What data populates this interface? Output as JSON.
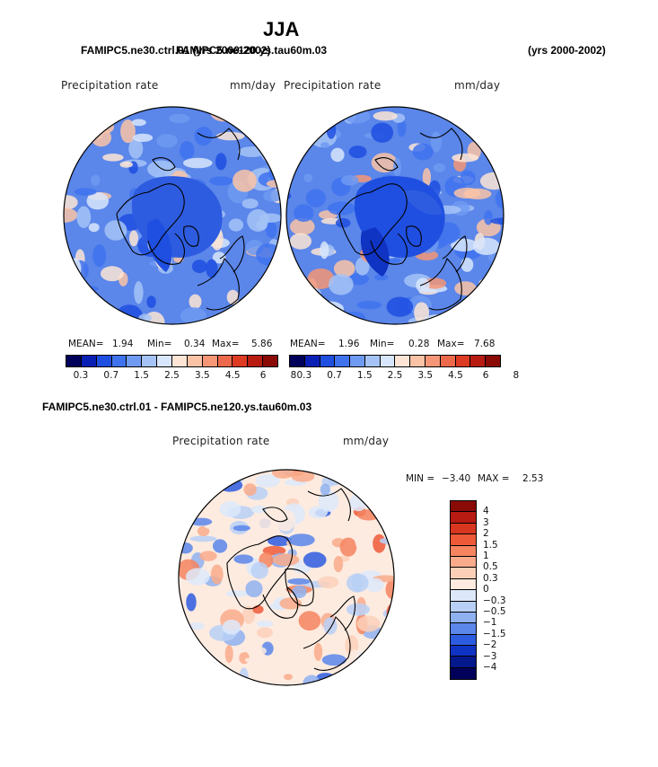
{
  "figure": {
    "title": "JJA",
    "case1_header": "FAMIPC5.ne30.ctrl.01 (yrs 2000-2002)",
    "case2_header": "FAMIPC5.ne120.ys.tau60m.03",
    "case2_years": "(yrs 2000-2002)",
    "diff_header": "FAMIPC5.ne30.ctrl.01 - FAMIPC5.ne120.ys.tau60m.03"
  },
  "panels": {
    "left": {
      "variable": "Precipitation rate",
      "units": "mm/day",
      "mean_label": "MEAN=",
      "mean": "1.94",
      "min_label": "Min=",
      "min": "0.34",
      "max_label": "Max=",
      "max": "5.86"
    },
    "right": {
      "variable": "Precipitation rate",
      "units": "mm/day",
      "mean_label": "MEAN=",
      "mean": "1.96",
      "min_label": "Min=",
      "min": "0.28",
      "max_label": "Max=",
      "max": "7.68"
    },
    "diff": {
      "variable": "Precipitation rate",
      "units": "mm/day",
      "min_label": "MIN =",
      "min": "−3.40",
      "max_label": "MAX =",
      "max": "2.53"
    }
  },
  "chart_data": [
    {
      "type": "heatmap",
      "projection": "north polar stereographic",
      "title": "FAMIPC5.ne30.ctrl.01 (yrs 2000-2002)",
      "variable": "Precipitation rate",
      "units": "mm/day",
      "stats": {
        "mean": 1.94,
        "min": 0.34,
        "max": 5.86
      },
      "colorbar_levels": [
        0.3,
        0.7,
        1.5,
        2.5,
        3.5,
        4.5,
        6,
        8
      ],
      "colorbar_tick_labels": [
        "0.3",
        "0.7",
        "1.5",
        "2.5",
        "3.5",
        "4.5",
        "6",
        "8"
      ],
      "colors": [
        "#00005a",
        "#0a1fb4",
        "#1f4fe0",
        "#3f73ee",
        "#6f9af2",
        "#a5c3f6",
        "#d8e6fb",
        "#fde5d5",
        "#fac3a6",
        "#f59676",
        "#ec6a4b",
        "#dd3b24",
        "#b81b12",
        "#8a0a06"
      ]
    },
    {
      "type": "heatmap",
      "projection": "north polar stereographic",
      "title": "FAMIPC5.ne120.ys.tau60m.03 (yrs 2000-2002)",
      "variable": "Precipitation rate",
      "units": "mm/day",
      "stats": {
        "mean": 1.96,
        "min": 0.28,
        "max": 7.68
      },
      "colorbar_levels": [
        0.3,
        0.7,
        1.5,
        2.5,
        3.5,
        4.5,
        6,
        8
      ],
      "colorbar_tick_labels": [
        "0.3",
        "0.7",
        "1.5",
        "2.5",
        "3.5",
        "4.5",
        "6",
        "8"
      ],
      "colors": [
        "#00005a",
        "#0a1fb4",
        "#1f4fe0",
        "#3f73ee",
        "#6f9af2",
        "#a5c3f6",
        "#d8e6fb",
        "#fde5d5",
        "#fac3a6",
        "#f59676",
        "#ec6a4b",
        "#dd3b24",
        "#b81b12",
        "#8a0a06"
      ]
    },
    {
      "type": "heatmap",
      "projection": "north polar stereographic",
      "title": "FAMIPC5.ne30.ctrl.01 - FAMIPC5.ne120.ys.tau60m.03",
      "variable": "Precipitation rate",
      "units": "mm/day",
      "stats": {
        "min": -3.4,
        "max": 2.53
      },
      "colorbar_levels": [
        4,
        3,
        2,
        1.5,
        1,
        0.5,
        0.3,
        0,
        -0.3,
        -0.5,
        -1,
        -1.5,
        -2,
        -3,
        -4
      ],
      "colorbar_tick_labels": [
        "4",
        "3",
        "2",
        "1.5",
        "1",
        "0.5",
        "0.3",
        "0",
        "−0.3",
        "−0.5",
        "−1",
        "−1.5",
        "−2",
        "−3",
        "−4"
      ],
      "colors": [
        "#8a0a06",
        "#b81b12",
        "#d8361f",
        "#ee5a38",
        "#f5845f",
        "#f9ab8b",
        "#fcd0b8",
        "#fdebe0",
        "#dde9fa",
        "#b9d0f6",
        "#8fb1f0",
        "#5b86ea",
        "#2e5ce0",
        "#0f33c2",
        "#04188c",
        "#00005a"
      ]
    }
  ]
}
